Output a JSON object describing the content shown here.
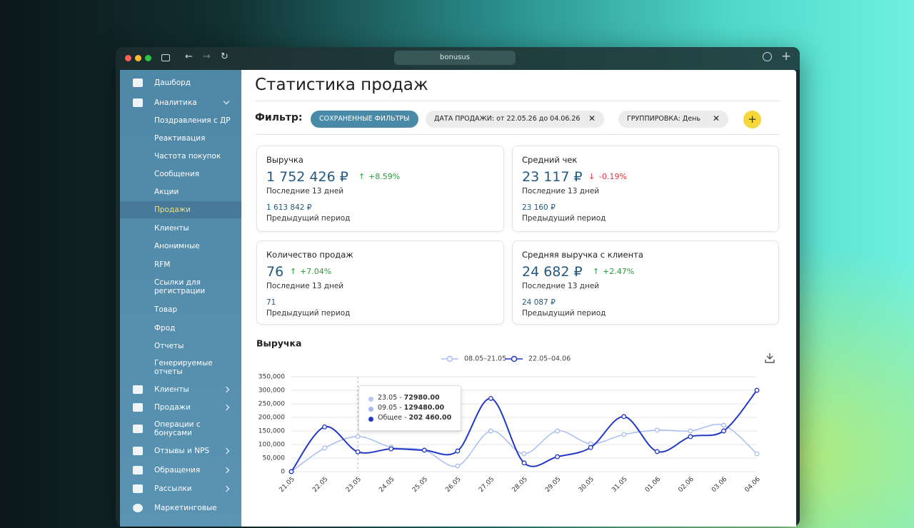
{
  "browser": {
    "url": "bonusus"
  },
  "sidebar": {
    "dashboard": "Дашборд",
    "analytics": {
      "label": "Аналитика",
      "children": [
        "Поздравления с ДР",
        "Реактивация",
        "Частота покупок",
        "Сообщения",
        "Акции",
        "Продажи",
        "Клиенты",
        "Анонимные",
        "RFM",
        "Ссылки для регистрации",
        "Товар",
        "Фрод",
        "Отчеты",
        "Генерируемые отчеты"
      ]
    },
    "sections": [
      "Клиенты",
      "Продажи",
      "Операции с бонусами",
      "Отзывы и NPS",
      "Обращения",
      "Рассылки",
      "Маркетинговые"
    ]
  },
  "header": {
    "title": "Статистика продаж"
  },
  "filters": {
    "label": "Фильтр:",
    "saved": "СОХРАНЕННЫЕ ФИЛЬТРЫ",
    "chips": [
      "ДАТА ПРОДАЖИ: от 22.05.26 до 04.06.26",
      "ГРУППИРОВКА: День"
    ]
  },
  "cards": [
    {
      "title": "Выручка",
      "value": "1 752 426 ₽",
      "change": "+8.59%",
      "period": "Последние 13 дней",
      "previous_value": "1 613 842 ₽",
      "previous_label": "Предыдущий период"
    },
    {
      "title": "Средний чек",
      "value": "23 117 ₽",
      "change": "-0.19%",
      "period": "Последние 13 дней",
      "previous_value": "23 160 ₽",
      "previous_label": "Предыдущий период"
    },
    {
      "title": "Количество продаж",
      "value": "76",
      "change": "+7.04%",
      "period": "Последние 13 дней",
      "previous_value": "71",
      "previous_label": "Предыдущий период"
    },
    {
      "title": "Средняя выручка с клиента",
      "value": "24 682 ₽",
      "change": "+2.47%",
      "period": "Последние 13 дней",
      "previous_value": "24 087 ₽",
      "previous_label": "Предыдущий период"
    }
  ],
  "revenue_chart": {
    "type": "line",
    "title": "Выручка",
    "categories": [
      "21.05",
      "22.05",
      "23.05",
      "24.05",
      "25.05",
      "26.05",
      "27.05",
      "28.05",
      "29.05",
      "30.05",
      "31.05",
      "01.06",
      "02.06",
      "03.06",
      "04.06"
    ],
    "series": [
      {
        "name": "08.05–21.05",
        "color": "#a9bdf2",
        "values": [
          0,
          87000,
          129480,
          90000,
          79000,
          21000,
          150000,
          66000,
          150000,
          103000,
          137000,
          153000,
          150000,
          171000,
          66000
        ]
      },
      {
        "name": "22.05–04.06",
        "color": "#2339c4",
        "values": [
          0,
          165000,
          72980,
          84000,
          79000,
          76000,
          270000,
          32000,
          55000,
          89000,
          203000,
          74000,
          129000,
          150000,
          300000
        ]
      }
    ],
    "ylim": [
      0,
      350000
    ],
    "yticks": [
      0,
      {
        "value": 50000,
        "label": "50,000"
      },
      {
        "value": 100000,
        "label": "100,000"
      },
      {
        "value": 150000,
        "label": "150,000"
      },
      {
        "value": 200000,
        "label": "200,000"
      },
      {
        "value": 250000,
        "label": "250,000"
      },
      {
        "value": 300000,
        "label": "300,000"
      },
      {
        "value": 350000,
        "label": "350,000"
      }
    ],
    "grid": true,
    "tooltip": {
      "rows": [
        {
          "date": "23.05 - ",
          "value": "72980.00"
        },
        {
          "date": "09.05 - ",
          "value": "129480.00"
        },
        {
          "date": "Общее - ",
          "value": "202 460.00"
        }
      ]
    }
  }
}
